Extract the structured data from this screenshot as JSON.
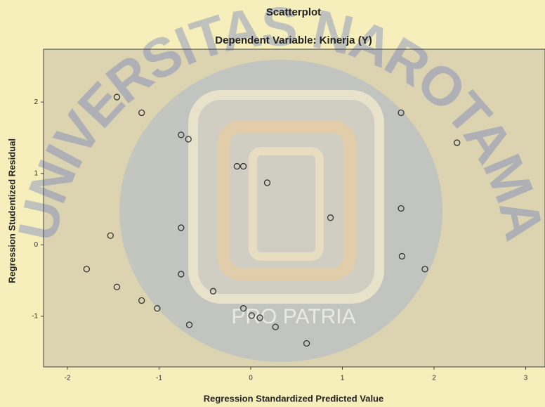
{
  "chart_data": {
    "type": "scatter",
    "title": "Scatterplot",
    "subtitle": "Dependent Variable: Kinerja (Y)",
    "x_label": "Regression Standardized Predicted Value",
    "y_label": "Regression Studentized Residual",
    "watermark": [
      "UNIVERSITAS NAROTAMA",
      "PRO PATRIA"
    ],
    "xlim": [
      -2.26,
      3.21
    ],
    "ylim": [
      -1.71,
      2.74
    ],
    "xticks": [
      -2,
      -1,
      0,
      1,
      2,
      3
    ],
    "yticks": [
      -1,
      0,
      1,
      2
    ],
    "color": "#333333",
    "x": [
      -1.46,
      -1.19,
      -0.76,
      -0.68,
      -0.15,
      -0.08,
      0.18,
      0.87,
      -0.76,
      -1.53,
      1.64,
      2.25,
      1.64,
      1.65,
      1.9,
      -1.79,
      -0.76,
      -1.46,
      -0.41,
      -1.19,
      -1.02,
      -0.08,
      0.01,
      0.1,
      -0.67,
      0.27,
      0.61
    ],
    "values": [
      2.07,
      1.85,
      1.54,
      1.48,
      1.1,
      1.1,
      0.87,
      0.38,
      0.24,
      0.13,
      1.85,
      1.43,
      0.51,
      -0.16,
      -0.34,
      -0.34,
      -0.41,
      -0.59,
      -0.65,
      -0.78,
      -0.89,
      -0.89,
      -0.99,
      -1.02,
      -1.12,
      -1.15,
      -1.38
    ]
  }
}
